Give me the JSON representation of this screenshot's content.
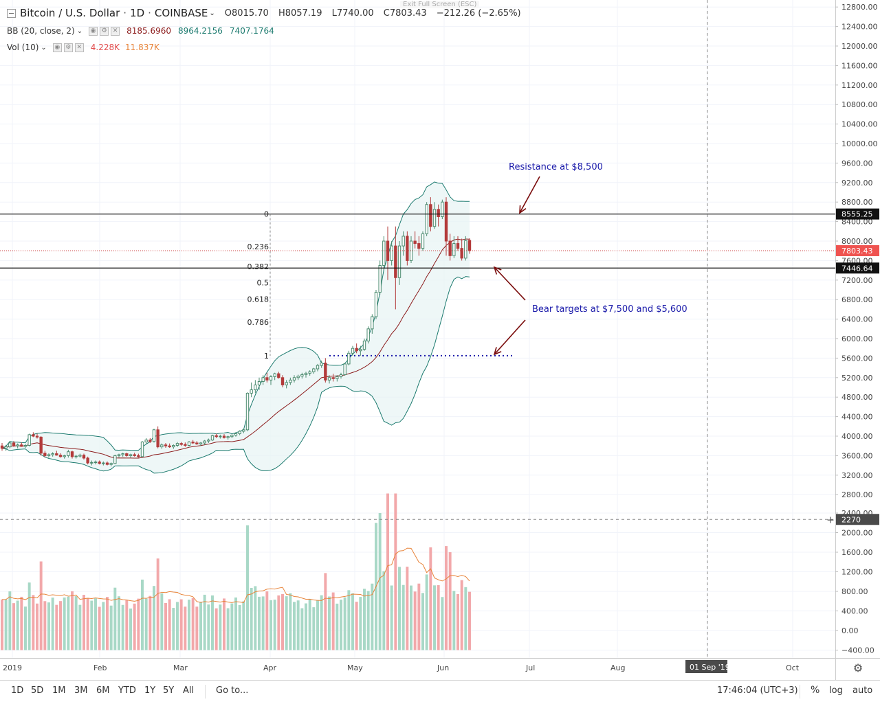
{
  "header": {
    "symbol": "Bitcoin / U.S. Dollar",
    "interval": "1D",
    "exchange": "COINBASE",
    "open": "O8015.70",
    "high": "H8057.19",
    "low": "L7740.00",
    "close": "C7803.43",
    "change": "−212.26 (−2.65%)",
    "exit_fullscreen": "Exit Full Screen (ESC)",
    "bb_label": "BB (20, close, 2)",
    "bb_basis": "8185.6960",
    "bb_upper": "8964.2156",
    "bb_lower": "7407.1764",
    "vol_label": "Vol (10)",
    "vol_value": "4.228K",
    "vol_ma": "11.837K"
  },
  "colors": {
    "up": "#26a69a",
    "down": "#ef5350",
    "up_candle": "#4a8a6e",
    "down_candle": "#b33a3a",
    "bb_band": "#1b7a6e",
    "bb_basis": "#8b1a1a",
    "annotation_text": "#1a1aaa",
    "annotation_arrow": "#7a0c0c",
    "vol_up": "#a8d8c6",
    "vol_down": "#f2a8aa",
    "vol_ma": "#e8843a"
  },
  "chart_data": {
    "type": "candlestick",
    "price_axis": {
      "ticks": [
        12800,
        12400,
        12000,
        11600,
        11200,
        10800,
        10400,
        10000,
        9600,
        9200,
        8800,
        8400,
        8000,
        7600,
        7200,
        6800,
        6400,
        6000,
        5600,
        5200,
        4800,
        4400,
        4000,
        3600,
        3200,
        2800,
        2400,
        2000,
        1600,
        1200,
        800,
        400,
        0,
        -400
      ],
      "tick_labels": [
        "12800.00",
        "12400.00",
        "12000.00",
        "11600.00",
        "11200.00",
        "10800.00",
        "10400.00",
        "10000.00",
        "9600.00",
        "9200.00",
        "8800.00",
        "8400.00",
        "8000.00",
        "7600.00",
        "7200.00",
        "6800.00",
        "6400.00",
        "6000.00",
        "5600.00",
        "5200.00",
        "4800.00",
        "4400.00",
        "4000.00",
        "3600.00",
        "3200.00",
        "2800.00",
        "2400.00",
        "2000.00",
        "1600.00",
        "1200.00",
        "800.00",
        "400.00",
        "0.00",
        "−400.00"
      ],
      "volume_tick_labels": [
        "2800.00",
        "2400.00",
        "2000.00",
        "1600.00",
        "1200.00",
        "800.00",
        "400.00",
        "0.00",
        "−400.00"
      ]
    },
    "price_labels": {
      "resistance": "8555.25",
      "last": "7803.43",
      "support": "7446.64",
      "crosshair": "2270"
    },
    "time_axis": {
      "labels": [
        "2019",
        "Feb",
        "Mar",
        "Apr",
        "May",
        "Jun",
        "Jul",
        "Aug",
        "01 Sep '19",
        "Oct"
      ]
    },
    "fib_levels": [
      {
        "label": "0",
        "price": 8555
      },
      {
        "label": "0.236",
        "price": 7890
      },
      {
        "label": "0.382",
        "price": 7480
      },
      {
        "label": "0.5",
        "price": 7150
      },
      {
        "label": "0.618",
        "price": 6810
      },
      {
        "label": "0.786",
        "price": 6340
      },
      {
        "label": "1",
        "price": 5650
      }
    ],
    "horizontal_lines": [
      8555,
      7447
    ],
    "dotted_level": 5650,
    "annotations": [
      {
        "text": "Resistance at $8,500"
      },
      {
        "text": "Bear targets at $7,500 and $5,600"
      }
    ],
    "candles": [
      [
        3800,
        3860,
        3700,
        3750
      ],
      [
        3750,
        3820,
        3700,
        3780
      ],
      [
        3780,
        3900,
        3750,
        3860
      ],
      [
        3860,
        3900,
        3780,
        3800
      ],
      [
        3800,
        3850,
        3750,
        3820
      ],
      [
        3820,
        3870,
        3780,
        3790
      ],
      [
        3790,
        3840,
        3760,
        3810
      ],
      [
        3810,
        4050,
        3790,
        4030
      ],
      [
        4030,
        4080,
        3980,
        4000
      ],
      [
        4000,
        4050,
        3950,
        3980
      ],
      [
        3980,
        4000,
        3600,
        3650
      ],
      [
        3650,
        3700,
        3560,
        3600
      ],
      [
        3600,
        3650,
        3560,
        3620
      ],
      [
        3620,
        3670,
        3580,
        3640
      ],
      [
        3640,
        3700,
        3600,
        3610
      ],
      [
        3610,
        3650,
        3560,
        3580
      ],
      [
        3580,
        3620,
        3540,
        3600
      ],
      [
        3600,
        3720,
        3560,
        3680
      ],
      [
        3680,
        3700,
        3540,
        3580
      ],
      [
        3580,
        3620,
        3540,
        3590
      ],
      [
        3590,
        3640,
        3560,
        3610
      ],
      [
        3610,
        3640,
        3520,
        3550
      ],
      [
        3550,
        3580,
        3420,
        3450
      ],
      [
        3450,
        3500,
        3400,
        3460
      ],
      [
        3460,
        3500,
        3420,
        3470
      ],
      [
        3470,
        3500,
        3420,
        3440
      ],
      [
        3440,
        3480,
        3400,
        3450
      ],
      [
        3450,
        3480,
        3400,
        3420
      ],
      [
        3420,
        3460,
        3380,
        3440
      ],
      [
        3440,
        3620,
        3430,
        3600
      ],
      [
        3600,
        3640,
        3560,
        3620
      ],
      [
        3620,
        3660,
        3580,
        3640
      ],
      [
        3640,
        3660,
        3580,
        3600
      ],
      [
        3600,
        3640,
        3560,
        3620
      ],
      [
        3620,
        3660,
        3580,
        3600
      ],
      [
        3600,
        3640,
        3560,
        3580
      ],
      [
        3580,
        3900,
        3570,
        3880
      ],
      [
        3880,
        3960,
        3840,
        3920
      ],
      [
        3920,
        3960,
        3860,
        3890
      ],
      [
        3890,
        4150,
        3870,
        4130
      ],
      [
        4130,
        4200,
        3750,
        3780
      ],
      [
        3780,
        3850,
        3740,
        3820
      ],
      [
        3820,
        3860,
        3760,
        3800
      ],
      [
        3800,
        3850,
        3760,
        3780
      ],
      [
        3780,
        3830,
        3740,
        3810
      ],
      [
        3810,
        3880,
        3780,
        3850
      ],
      [
        3850,
        3880,
        3800,
        3830
      ],
      [
        3830,
        3870,
        3780,
        3810
      ],
      [
        3810,
        3900,
        3790,
        3880
      ],
      [
        3880,
        3920,
        3840,
        3860
      ],
      [
        3860,
        3900,
        3820,
        3840
      ],
      [
        3840,
        3880,
        3800,
        3860
      ],
      [
        3860,
        3920,
        3820,
        3900
      ],
      [
        3900,
        3950,
        3860,
        3920
      ],
      [
        3920,
        4030,
        3900,
        4010
      ],
      [
        4010,
        4050,
        3960,
        3990
      ],
      [
        3990,
        4030,
        3950,
        4000
      ],
      [
        4000,
        4040,
        3950,
        3970
      ],
      [
        3970,
        4010,
        3930,
        3990
      ],
      [
        3990,
        4040,
        3960,
        4020
      ],
      [
        4020,
        4080,
        3990,
        4050
      ],
      [
        4050,
        4120,
        4020,
        4100
      ],
      [
        4100,
        4150,
        4060,
        4130
      ],
      [
        4130,
        4900,
        4100,
        4880
      ],
      [
        4880,
        5100,
        4800,
        4950
      ],
      [
        4950,
        5150,
        4880,
        5050
      ],
      [
        5050,
        5200,
        4950,
        5120
      ],
      [
        5120,
        5250,
        5050,
        5200
      ],
      [
        5200,
        5300,
        5100,
        5150
      ],
      [
        5150,
        5250,
        5050,
        5220
      ],
      [
        5220,
        5300,
        5150,
        5280
      ],
      [
        5280,
        5320,
        5180,
        5200
      ],
      [
        5200,
        5250,
        5000,
        5050
      ],
      [
        5050,
        5150,
        4980,
        5100
      ],
      [
        5100,
        5200,
        5050,
        5150
      ],
      [
        5150,
        5250,
        5100,
        5200
      ],
      [
        5200,
        5260,
        5150,
        5230
      ],
      [
        5230,
        5300,
        5180,
        5260
      ],
      [
        5260,
        5320,
        5200,
        5290
      ],
      [
        5290,
        5350,
        5240,
        5320
      ],
      [
        5320,
        5400,
        5280,
        5380
      ],
      [
        5380,
        5480,
        5330,
        5450
      ],
      [
        5450,
        5550,
        5400,
        5500
      ],
      [
        5500,
        5600,
        5100,
        5150
      ],
      [
        5150,
        5250,
        5080,
        5200
      ],
      [
        5200,
        5280,
        5120,
        5180
      ],
      [
        5180,
        5250,
        5120,
        5220
      ],
      [
        5220,
        5300,
        5180,
        5260
      ],
      [
        5260,
        5500,
        5240,
        5480
      ],
      [
        5480,
        5750,
        5450,
        5700
      ],
      [
        5700,
        5850,
        5650,
        5800
      ],
      [
        5800,
        5900,
        5700,
        5750
      ],
      [
        5750,
        5850,
        5650,
        5780
      ],
      [
        5780,
        6000,
        5750,
        5950
      ],
      [
        5950,
        6250,
        5900,
        6200
      ],
      [
        6200,
        6500,
        6100,
        6450
      ],
      [
        6450,
        7000,
        6400,
        6950
      ],
      [
        6950,
        7600,
        6900,
        7500
      ],
      [
        7500,
        8100,
        7400,
        8000
      ],
      [
        8000,
        8300,
        7200,
        7600
      ],
      [
        7600,
        8000,
        7500,
        7900
      ],
      [
        7900,
        8300,
        6600,
        7250
      ],
      [
        7250,
        8000,
        7100,
        7900
      ],
      [
        7900,
        8200,
        7700,
        8100
      ],
      [
        8100,
        8200,
        7500,
        7600
      ],
      [
        7600,
        8100,
        7550,
        8000
      ],
      [
        8000,
        8200,
        7850,
        7950
      ],
      [
        7950,
        8100,
        7700,
        7850
      ],
      [
        7850,
        8200,
        7800,
        8150
      ],
      [
        8150,
        8800,
        8100,
        8750
      ],
      [
        8750,
        8900,
        8200,
        8300
      ],
      [
        8300,
        8800,
        8250,
        8650
      ],
      [
        8650,
        8750,
        8300,
        8500
      ],
      [
        8500,
        8850,
        8450,
        8800
      ],
      [
        8800,
        8900,
        7700,
        8000
      ],
      [
        8000,
        8150,
        7600,
        7700
      ],
      [
        7700,
        8100,
        7650,
        7950
      ],
      [
        7950,
        8100,
        7800,
        7850
      ],
      [
        7850,
        8050,
        7600,
        7650
      ],
      [
        7650,
        8100,
        7600,
        8010
      ],
      [
        8015,
        8057,
        7740,
        7803
      ]
    ],
    "bb_upper": [],
    "bb_lower": [],
    "volume": []
  },
  "bottom_bar": {
    "ranges": [
      "1D",
      "5D",
      "1M",
      "3M",
      "6M",
      "YTD",
      "1Y",
      "5Y",
      "All"
    ],
    "goto": "Go to...",
    "time": "17:46:04 (UTC+3)",
    "percent": "%",
    "log": "log",
    "auto": "auto"
  }
}
